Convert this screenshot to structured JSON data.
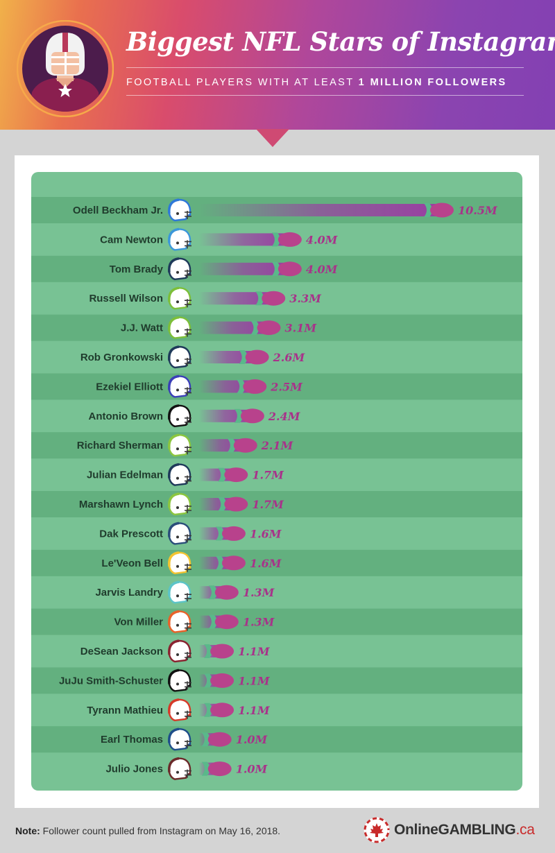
{
  "header": {
    "title": "Biggest NFL Stars of Instagram",
    "subtitle_prefix": "FOOTBALL PLAYERS WITH AT LEAST ",
    "subtitle_bold": "1 MILLION FOLLOWERS"
  },
  "chart_data": {
    "type": "bar",
    "title": "Biggest NFL Stars of Instagram",
    "subtitle": "FOOTBALL PLAYERS WITH AT LEAST 1 MILLION FOLLOWERS",
    "xlabel": "",
    "ylabel": "",
    "unit": "M",
    "categories": [
      "Odell Beckham Jr.",
      "Cam Newton",
      "Tom Brady",
      "Russell Wilson",
      "J.J. Watt",
      "Rob Gronkowski",
      "Ezekiel Elliott",
      "Antonio Brown",
      "Richard Sherman",
      "Julian Edelman",
      "Marshawn Lynch",
      "Dak Prescott",
      "Le'Veon Bell",
      "Jarvis Landry",
      "Von Miller",
      "DeSean Jackson",
      "JuJu Smith-Schuster",
      "Tyrann Mathieu",
      "Earl Thomas",
      "Julio Jones"
    ],
    "values": [
      10.5,
      4.0,
      4.0,
      3.3,
      3.1,
      2.6,
      2.5,
      2.4,
      2.1,
      1.7,
      1.7,
      1.6,
      1.6,
      1.3,
      1.3,
      1.1,
      1.1,
      1.1,
      1.0,
      1.0
    ],
    "value_labels": [
      "10.5M",
      "4.0M",
      "4.0M",
      "3.3M",
      "3.1M",
      "2.6M",
      "2.5M",
      "2.4M",
      "2.1M",
      "1.7M",
      "1.7M",
      "1.6M",
      "1.6M",
      "1.3M",
      "1.3M",
      "1.1M",
      "1.1M",
      "1.1M",
      "1.0M",
      "1.0M"
    ],
    "helmet_colors": [
      "#2f78d8",
      "#3c97d9",
      "#1f3a5a",
      "#7dbf3a",
      "#7dbf3a",
      "#1f3a5a",
      "#3b3fb8",
      "#111111",
      "#8cc63f",
      "#1f3a5a",
      "#8cc63f",
      "#2a4e7a",
      "#f4c430",
      "#5cc4c8",
      "#e8622a",
      "#8a2330",
      "#111111",
      "#d63a2a",
      "#1f4e8a",
      "#6b2a2a"
    ],
    "colors": {
      "bar": "#9a3fa2",
      "ball": "#b8428c",
      "label": "#a8328a",
      "row_dark": "#63b07f",
      "row_light": "#78c294",
      "name": "#1f3b2c"
    },
    "grid": false,
    "legend": "none"
  },
  "footer": {
    "note_label": "Note:",
    "note_text": " Follower count pulled from Instagram on May 16, 2018.",
    "logo_main": "OnlineGAMBLING",
    "logo_suffix": ".ca"
  }
}
